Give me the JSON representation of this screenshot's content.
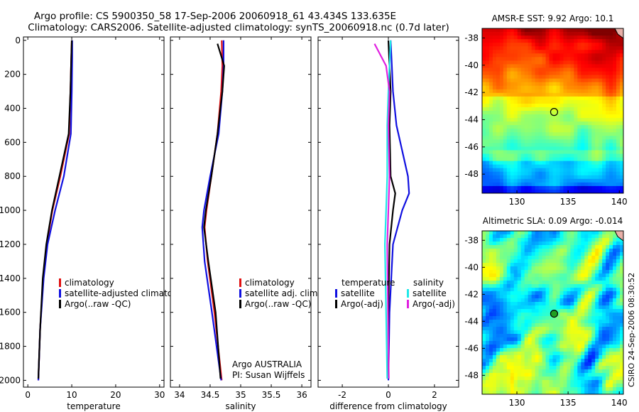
{
  "title_line1": "Argo profile: CS 5900350_58 17-Sep-2006 20060918_61 43.434S 133.635E",
  "title_line2": "Climatology: CARS2006. Satellite-adjusted climatology: synTS_20060918.nc (0.7d later)",
  "footer_vertical": "CSIRO 24-Sep-2006 08:30:52",
  "colors": {
    "climatology": "#e01010",
    "satellite": "#1010e0",
    "argo": "#000000",
    "cyan": "#20e8e8",
    "magenta": "#e020e0"
  },
  "chart_data": [
    {
      "type": "line",
      "id": "temperature",
      "xlabel": "temperature",
      "xlim": [
        -1,
        31
      ],
      "ylim": [
        2040,
        -20
      ],
      "xticks": [
        "0",
        "10",
        "20",
        "30"
      ],
      "yticks": [
        "0",
        "200",
        "400",
        "600",
        "800",
        "1000",
        "1200",
        "1400",
        "1600",
        "1800",
        "2000"
      ],
      "legend": [
        "climatology",
        "satellite-adjusted climatology",
        "Argo(..raw -QC)"
      ],
      "series": [
        {
          "name": "climatology",
          "color": "#e01010",
          "depth": [
            0,
            100,
            300,
            550,
            800,
            1000,
            1200,
            1400,
            1700,
            2000
          ],
          "values": [
            10.0,
            9.9,
            9.7,
            9.4,
            7.4,
            5.6,
            4.3,
            3.5,
            2.8,
            2.4
          ]
        },
        {
          "name": "satellite-adjusted climatology",
          "color": "#1010e0",
          "depth": [
            0,
            100,
            300,
            550,
            800,
            1000,
            1200,
            1400,
            1700,
            2000
          ],
          "values": [
            10.1,
            10.1,
            10.0,
            9.8,
            8.2,
            6.2,
            4.5,
            3.6,
            2.8,
            2.4
          ]
        },
        {
          "name": "Argo(..raw -QC)",
          "color": "#000000",
          "depth": [
            0,
            100,
            300,
            550,
            800,
            1000,
            1200,
            1400,
            1700,
            1990
          ],
          "values": [
            10.0,
            9.9,
            9.7,
            9.3,
            7.2,
            5.5,
            4.2,
            3.4,
            2.8,
            2.4
          ]
        }
      ]
    },
    {
      "type": "line",
      "id": "salinity",
      "xlabel": "salinity",
      "xlim": [
        33.85,
        36.15
      ],
      "ylim": [
        2040,
        -20
      ],
      "xticks": [
        "34",
        "34.5",
        "35",
        "35.5",
        "36"
      ],
      "legend": [
        "climatology",
        "satellite adj. clim.",
        "Argo(..raw -QC)"
      ],
      "annotations": [
        "Argo AUSTRALIA",
        "PI: Susan Wijffels"
      ],
      "series": [
        {
          "name": "climatology",
          "color": "#e01010",
          "depth": [
            0,
            150,
            300,
            550,
            800,
            1000,
            1100,
            1300,
            1600,
            2000
          ],
          "values": [
            34.69,
            34.7,
            34.68,
            34.62,
            34.52,
            34.44,
            34.41,
            34.46,
            34.57,
            34.69
          ]
        },
        {
          "name": "satellite adj. clim.",
          "color": "#1010e0",
          "depth": [
            0,
            150,
            300,
            550,
            800,
            1000,
            1100,
            1300,
            1600,
            2000
          ],
          "values": [
            34.72,
            34.72,
            34.7,
            34.64,
            34.5,
            34.4,
            34.37,
            34.41,
            34.53,
            34.68
          ]
        },
        {
          "name": "Argo(..raw -QC)",
          "color": "#000000",
          "depth": [
            20,
            150,
            300,
            550,
            800,
            1000,
            1100,
            1300,
            1600,
            1990
          ],
          "values": [
            34.62,
            34.73,
            34.7,
            34.62,
            34.52,
            34.43,
            34.4,
            34.47,
            34.59,
            34.67
          ]
        }
      ]
    },
    {
      "type": "line",
      "id": "difference",
      "xlabel": "difference from climatology",
      "xlim": [
        -3.05,
        3.05
      ],
      "ylim": [
        2040,
        -20
      ],
      "xticks": [
        "-2",
        "0",
        "2"
      ],
      "legend_left_title": "temperature",
      "legend_right_title": "salinity",
      "legend_left": [
        "satellite",
        "Argo(-adj)"
      ],
      "legend_right": [
        "satellite",
        "Argo(-adj)"
      ],
      "series": [
        {
          "name": "temperature satellite",
          "color": "#1010e0",
          "depth": [
            0,
            150,
            300,
            500,
            650,
            800,
            900,
            1000,
            1200,
            1600,
            2000
          ],
          "values": [
            0.1,
            0.15,
            0.2,
            0.35,
            0.6,
            0.85,
            0.9,
            0.6,
            0.2,
            0.05,
            0.0
          ]
        },
        {
          "name": "temperature Argo(-adj)",
          "color": "#000000",
          "depth": [
            0,
            150,
            300,
            500,
            800,
            900,
            1000,
            1200,
            1600,
            1990
          ],
          "values": [
            0.0,
            0.05,
            0.1,
            0.05,
            0.1,
            0.3,
            0.2,
            0.05,
            0.0,
            0.0
          ]
        },
        {
          "name": "salinity satellite",
          "color": "#20e8e8",
          "depth": [
            0,
            150,
            300,
            500,
            800,
            1000,
            1200,
            1600,
            1990
          ],
          "values": [
            0.1,
            0.05,
            0.0,
            -0.05,
            -0.05,
            -0.1,
            -0.15,
            -0.1,
            -0.05
          ]
        },
        {
          "name": "salinity Argo(-adj)",
          "color": "#e020e0",
          "depth": [
            20,
            150,
            300,
            500,
            800,
            1000,
            1200,
            1600,
            1990
          ],
          "values": [
            -0.6,
            -0.1,
            0.05,
            0.0,
            0.05,
            0.0,
            -0.05,
            -0.02,
            0.02
          ]
        }
      ]
    },
    {
      "type": "heatmap",
      "id": "sst",
      "title": "AMSR-E SST: 9.92 Argo: 10.1",
      "xlim": [
        126.6,
        140.4
      ],
      "ylim": [
        -49.4,
        -37.3
      ],
      "xticks": [
        "130",
        "135",
        "140"
      ],
      "yticks": [
        "-38",
        "-40",
        "-42",
        "-44",
        "-46",
        "-48"
      ],
      "marker": {
        "lon": 133.635,
        "lat": -43.434
      }
    },
    {
      "type": "heatmap",
      "id": "sla",
      "title": "Altimetric SLA: 0.09 Argo: -0.014",
      "xlim": [
        126.6,
        140.4
      ],
      "ylim": [
        -49.4,
        -37.3
      ],
      "xticks": [
        "130",
        "135",
        "140"
      ],
      "yticks": [
        "-38",
        "-40",
        "-42",
        "-44",
        "-46",
        "-48"
      ],
      "marker": {
        "lon": 133.635,
        "lat": -43.434
      }
    }
  ]
}
